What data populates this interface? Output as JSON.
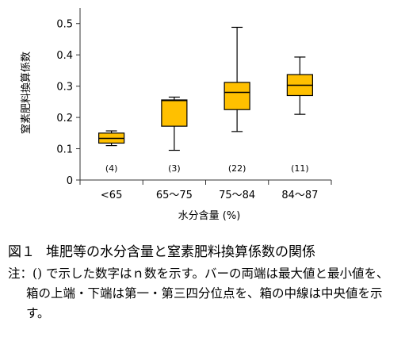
{
  "chart_data": {
    "type": "box",
    "ylabel": "窒素肥料換算係数",
    "xlabel": "水分含量 (%)",
    "ylim": [
      0,
      0.55
    ],
    "yticks": [
      0,
      0.1,
      0.2,
      0.3,
      0.4,
      0.5
    ],
    "ytick_labels": [
      "0",
      "0.1",
      "0.2",
      "0.3",
      "0.4",
      "0.5"
    ],
    "categories": [
      "<65",
      "65～75",
      "75～84",
      "84～87"
    ],
    "counts": [
      "(4)",
      "(3)",
      "(22)",
      "(11)"
    ],
    "boxes": [
      {
        "min": 0.11,
        "q1": 0.118,
        "median": 0.133,
        "q3": 0.15,
        "max": 0.157
      },
      {
        "min": 0.095,
        "q1": 0.172,
        "median": 0.254,
        "q3": 0.256,
        "max": 0.265
      },
      {
        "min": 0.155,
        "q1": 0.225,
        "median": 0.28,
        "q3": 0.312,
        "max": 0.488
      },
      {
        "min": 0.21,
        "q1": 0.27,
        "median": 0.303,
        "q3": 0.337,
        "max": 0.393
      }
    ],
    "box_color": "#FFC000",
    "grid": false
  },
  "caption": {
    "number": "図１",
    "title": "堆肥等の水分含量と窒素肥料換算係数の関係",
    "note": "注：() で示した数字はｎ数を示す。バーの両端は最大値と最小値を、箱の上端・下端は第一・第三四分位点を、箱の中線は中央値を示す。"
  }
}
